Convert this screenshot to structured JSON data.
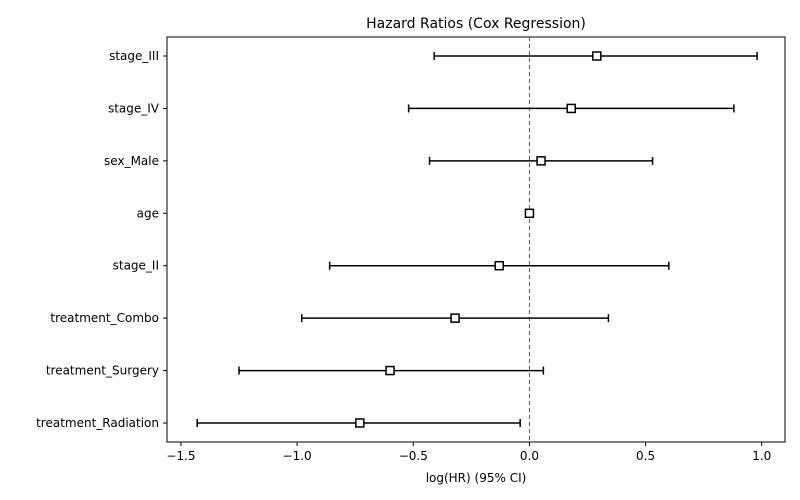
{
  "chart_data": {
    "type": "forest",
    "title": "Hazard Ratios (Cox Regression)",
    "xlabel": "log(HR) (95% CI)",
    "ylabel": "",
    "xlim": [
      -1.56,
      1.1
    ],
    "xticks": [
      -1.5,
      -1.0,
      -0.5,
      0.0,
      0.5,
      1.0
    ],
    "xtick_labels": [
      "−1.5",
      "−1.0",
      "−0.5",
      "0.0",
      "0.5",
      "1.0"
    ],
    "reference_line": 0.0,
    "grid": false,
    "colors": {
      "marker_edge": "#000000",
      "marker_fill": "#ffffff",
      "errorbar": "#000000",
      "reference_line": "#555555",
      "axes": "#000000"
    },
    "rows": [
      {
        "label": "stage_III",
        "coef": 0.29,
        "lower": -0.41,
        "upper": 0.98
      },
      {
        "label": "stage_IV",
        "coef": 0.18,
        "lower": -0.52,
        "upper": 0.88
      },
      {
        "label": "sex_Male",
        "coef": 0.05,
        "lower": -0.43,
        "upper": 0.53
      },
      {
        "label": "age",
        "coef": 0.0,
        "lower": -0.01,
        "upper": 0.01
      },
      {
        "label": "stage_II",
        "coef": -0.13,
        "lower": -0.86,
        "upper": 0.6
      },
      {
        "label": "treatment_Combo",
        "coef": -0.32,
        "lower": -0.98,
        "upper": 0.34
      },
      {
        "label": "treatment_Surgery",
        "coef": -0.6,
        "lower": -1.25,
        "upper": 0.06
      },
      {
        "label": "treatment_Radiation",
        "coef": -0.73,
        "lower": -1.43,
        "upper": -0.04
      }
    ]
  }
}
